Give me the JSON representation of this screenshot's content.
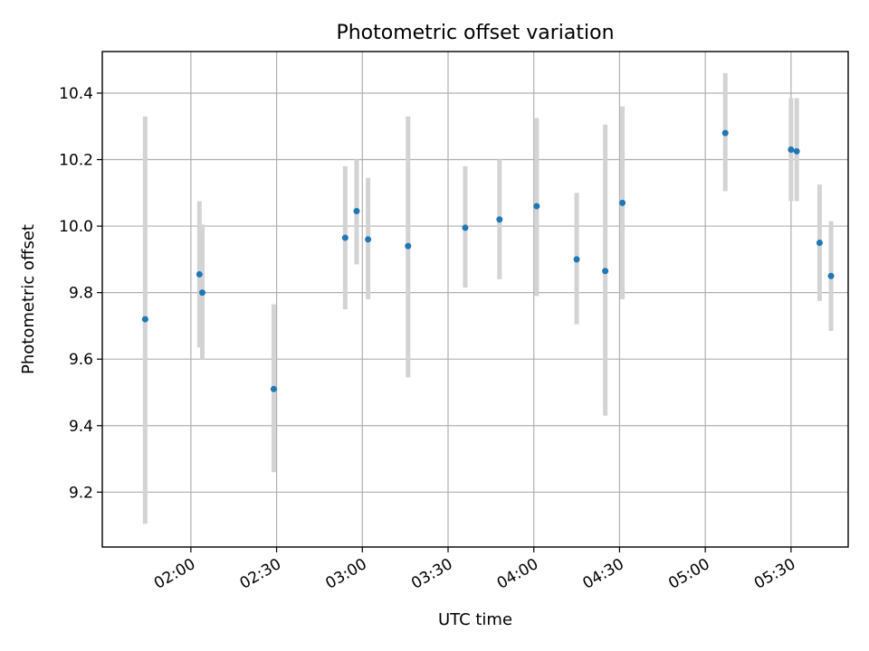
{
  "chart_data": {
    "type": "scatter",
    "title": "Photometric offset variation",
    "xlabel": "UTC time",
    "ylabel": "Photometric offset",
    "grid": true,
    "x_ticks": [
      "02:00",
      "02:30",
      "03:00",
      "03:30",
      "04:00",
      "04:30",
      "05:00",
      "05:30"
    ],
    "y_ticks": [
      "9.2",
      "9.4",
      "9.6",
      "9.8",
      "10.0",
      "10.2",
      "10.4"
    ],
    "xlim": [
      "01:29",
      "05:50"
    ],
    "ylim": [
      9.035,
      10.525
    ],
    "colors": {
      "points": "#1f77b4",
      "error_bars": "#d3d3d3"
    },
    "points": [
      {
        "x": "01:44",
        "y": 9.72,
        "y_low": 9.105,
        "y_high": 10.33
      },
      {
        "x": "02:03",
        "y": 9.855,
        "y_low": 9.635,
        "y_high": 10.075
      },
      {
        "x": "02:04",
        "y": 9.8,
        "y_low": 9.6,
        "y_high": 10.005
      },
      {
        "x": "02:29",
        "y": 9.51,
        "y_low": 9.26,
        "y_high": 9.765
      },
      {
        "x": "02:54",
        "y": 9.965,
        "y_low": 9.75,
        "y_high": 10.18
      },
      {
        "x": "02:58",
        "y": 10.045,
        "y_low": 9.885,
        "y_high": 10.2
      },
      {
        "x": "03:02",
        "y": 9.96,
        "y_low": 9.78,
        "y_high": 10.145
      },
      {
        "x": "03:16",
        "y": 9.94,
        "y_low": 9.545,
        "y_high": 10.33
      },
      {
        "x": "03:36",
        "y": 9.995,
        "y_low": 9.815,
        "y_high": 10.18
      },
      {
        "x": "03:48",
        "y": 10.02,
        "y_low": 9.84,
        "y_high": 10.2
      },
      {
        "x": "04:01",
        "y": 10.06,
        "y_low": 9.79,
        "y_high": 10.325
      },
      {
        "x": "04:15",
        "y": 9.9,
        "y_low": 9.705,
        "y_high": 10.1
      },
      {
        "x": "04:25",
        "y": 9.865,
        "y_low": 9.43,
        "y_high": 10.305
      },
      {
        "x": "04:31",
        "y": 10.07,
        "y_low": 9.78,
        "y_high": 10.36
      },
      {
        "x": "05:07",
        "y": 10.28,
        "y_low": 10.105,
        "y_high": 10.46
      },
      {
        "x": "05:30",
        "y": 10.23,
        "y_low": 10.075,
        "y_high": 10.385
      },
      {
        "x": "05:32",
        "y": 10.225,
        "y_low": 10.075,
        "y_high": 10.385
      },
      {
        "x": "05:40",
        "y": 9.95,
        "y_low": 9.775,
        "y_high": 10.125
      },
      {
        "x": "05:44",
        "y": 9.85,
        "y_low": 9.685,
        "y_high": 10.015
      }
    ]
  }
}
